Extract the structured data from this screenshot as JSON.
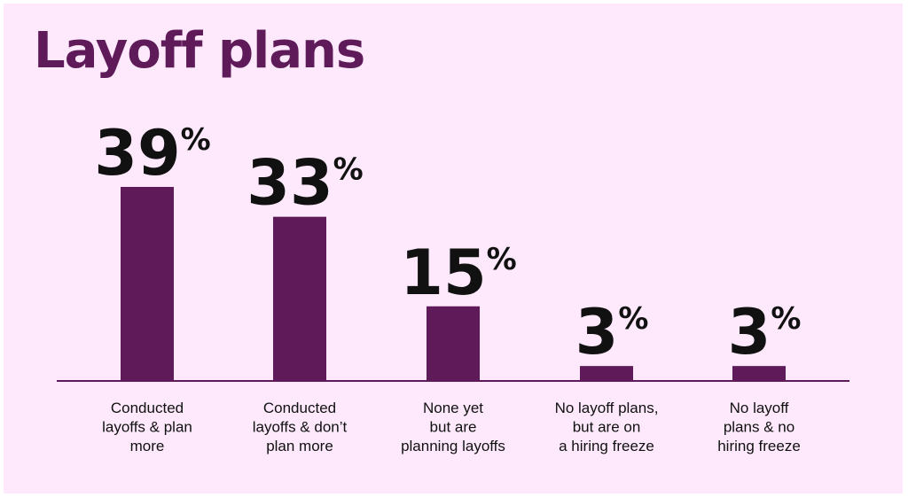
{
  "chart_data": {
    "type": "bar",
    "title": "Layoff plans",
    "categories": [
      [
        "Conducted",
        "layoffs & plan",
        "more"
      ],
      [
        "Conducted",
        "layoffs & don’t",
        "plan more"
      ],
      [
        "None yet",
        "but are",
        "planning layoffs"
      ],
      [
        "No layoff plans,",
        "but are on",
        "a hiring freeze"
      ],
      [
        "No layoff",
        "plans & no",
        "hiring freeze"
      ]
    ],
    "values": [
      39,
      33,
      15,
      3,
      3
    ],
    "value_suffix": "%",
    "ylim": [
      0,
      39
    ],
    "xlabel": "",
    "ylabel": "",
    "grid": false,
    "colors": {
      "bar": "#5e1a59",
      "axis": "#5e1a59",
      "text": "#111111",
      "background": "#fde9fb"
    }
  }
}
